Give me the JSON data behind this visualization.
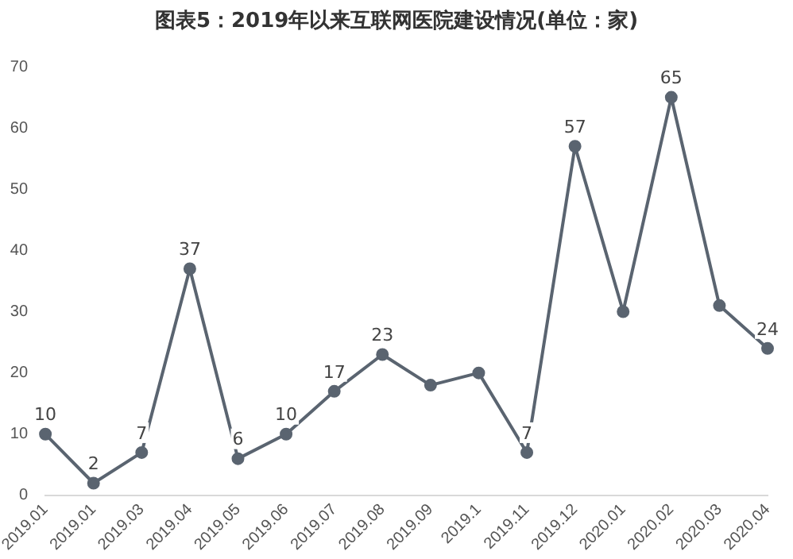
{
  "chart_data": {
    "type": "line",
    "title": "图表5：2019年以来互联网医院建设情况(单位：家)",
    "categories": [
      "2019.01",
      "2019.01",
      "2019.03",
      "2019.04",
      "2019.05",
      "2019.06",
      "2019.07",
      "2019.08",
      "2019.09",
      "2019.1",
      "2019.11",
      "2019.12",
      "2020.01",
      "2020.02",
      "2020.03",
      "2020.04"
    ],
    "series": [
      {
        "color": "#5a6470",
        "values": [
          10,
          2,
          7,
          37,
          6,
          10,
          17,
          23,
          18,
          20,
          7,
          57,
          30,
          65,
          31,
          24
        ],
        "value_labels": [
          "10",
          "2",
          "7",
          "37",
          "6",
          "10",
          "17",
          "23",
          null,
          null,
          "7",
          "57",
          null,
          "65",
          null,
          "24"
        ]
      }
    ],
    "ylim": [
      0,
      70
    ],
    "yticks": [
      0,
      10,
      20,
      30,
      40,
      50,
      60,
      70
    ],
    "grid": false,
    "marker": "circle",
    "line_style": "solid"
  }
}
